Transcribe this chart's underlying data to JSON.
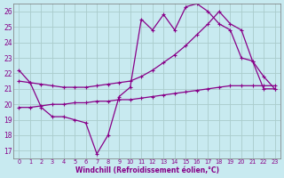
{
  "xlabel": "Windchill (Refroidissement éolien,°C)",
  "xlim": [
    -0.5,
    23.5
  ],
  "ylim": [
    16.5,
    26.5
  ],
  "xticks": [
    0,
    1,
    2,
    3,
    4,
    5,
    6,
    7,
    8,
    9,
    10,
    11,
    12,
    13,
    14,
    15,
    16,
    17,
    18,
    19,
    20,
    21,
    22,
    23
  ],
  "yticks": [
    17,
    18,
    19,
    20,
    21,
    22,
    23,
    24,
    25,
    26
  ],
  "background_color": "#c8eaf0",
  "grid_color": "#aacccc",
  "line_color": "#880088",
  "line1_x": [
    0,
    1,
    2,
    3,
    4,
    5,
    6,
    7,
    8,
    9,
    10,
    11,
    12,
    13,
    14,
    15,
    16,
    17,
    18,
    19,
    20,
    21,
    22,
    23
  ],
  "line1_y": [
    22.2,
    21.4,
    19.8,
    19.2,
    19.2,
    19.0,
    18.8,
    16.8,
    18.0,
    20.5,
    21.1,
    25.5,
    24.8,
    25.8,
    24.8,
    26.3,
    26.5,
    26.0,
    25.2,
    24.8,
    23.0,
    22.8,
    21.0,
    21.0
  ],
  "line2_x": [
    0,
    1,
    2,
    3,
    4,
    5,
    6,
    7,
    8,
    9,
    10,
    11,
    12,
    13,
    14,
    15,
    16,
    17,
    18,
    19,
    20,
    21,
    22,
    23
  ],
  "line2_y": [
    21.5,
    21.4,
    21.3,
    21.2,
    21.1,
    21.1,
    21.1,
    21.2,
    21.3,
    21.4,
    21.5,
    21.8,
    22.2,
    22.7,
    23.2,
    23.8,
    24.5,
    25.2,
    26.0,
    25.2,
    24.8,
    22.8,
    21.8,
    21.0
  ],
  "line3_x": [
    0,
    1,
    2,
    3,
    4,
    5,
    6,
    7,
    8,
    9,
    10,
    11,
    12,
    13,
    14,
    15,
    16,
    17,
    18,
    19,
    20,
    21,
    22,
    23
  ],
  "line3_y": [
    19.8,
    19.8,
    19.9,
    20.0,
    20.0,
    20.1,
    20.1,
    20.2,
    20.2,
    20.3,
    20.3,
    20.4,
    20.5,
    20.6,
    20.7,
    20.8,
    20.9,
    21.0,
    21.1,
    21.2,
    21.2,
    21.2,
    21.2,
    21.2
  ]
}
